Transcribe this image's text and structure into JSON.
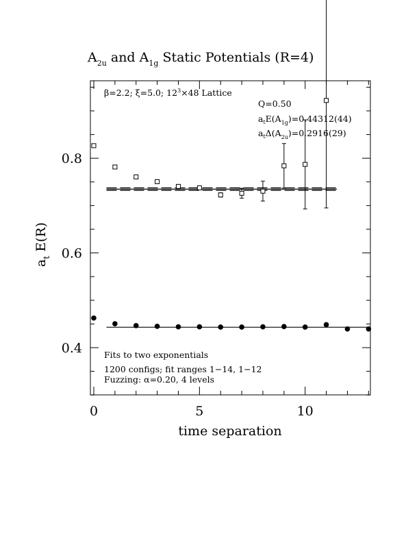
{
  "chart_data": {
    "type": "scatter",
    "title": {
      "a": "A",
      "a_sub": "2u",
      "mid": " and A",
      "b_sub": "1g",
      "end": " Static Potentials (R=4)"
    },
    "xlabel": "time separation",
    "ylabel": {
      "main": "a",
      "sub": "t",
      "rest": " E(R)"
    },
    "xlim": [
      0,
      13
    ],
    "ylim": [
      0.3,
      0.965
    ],
    "x_ticks": [
      0,
      5,
      10
    ],
    "y_ticks": [
      0.4,
      0.6,
      0.8
    ],
    "x_tick_labels": [
      "0",
      "5",
      "10"
    ],
    "y_tick_labels": [
      "0.4",
      "0.6",
      "0.8"
    ],
    "lattice_note": {
      "beta": "β=2.2; ξ=5.0; 12",
      "sup": "3",
      "rest": "×48 Lattice"
    },
    "fit_info": {
      "q": "Q=0.50",
      "e1_pre": "a",
      "e1_sub": "t",
      "e1_mid": "E(A",
      "e1_sub2": "1g",
      "e1_val": ")=0.44312(44)",
      "e2_pre": "a",
      "e2_sub": "t",
      "e2_mid": "Δ(A",
      "e2_sub2": "2u",
      "e2_val": ")=0.2916(29)"
    },
    "footnote": {
      "line1": "Fits to two exponentials",
      "line2": "1200 configs; fit ranges 1−14, 1−12",
      "line3": "Fuzzing: α=0.20, 4 levels"
    },
    "series": [
      {
        "marker": "filled-circle",
        "x": [
          0,
          1,
          2,
          3,
          4,
          5,
          6,
          7,
          8,
          9,
          10,
          11,
          12,
          13
        ],
        "y": [
          0.4625,
          0.4505,
          0.4465,
          0.445,
          0.444,
          0.444,
          0.4435,
          0.4435,
          0.444,
          0.4445,
          0.4435,
          0.4485,
          0.4395,
          0.4395
        ],
        "err": [
          0.0005,
          0.0005,
          0.0005,
          0.0005,
          0.0005,
          0.0005,
          0.0005,
          0.0005,
          0.0005,
          0.0008,
          0.0012,
          0.003,
          0.003,
          0.003
        ]
      },
      {
        "marker": "open-square",
        "x": [
          0,
          1,
          2,
          3,
          4,
          5,
          6,
          7,
          8,
          9,
          10,
          11
        ],
        "y": [
          0.8265,
          0.7815,
          0.7605,
          0.7505,
          0.7405,
          0.7375,
          0.7225,
          0.726,
          0.7305,
          0.784,
          0.787,
          0.922
        ],
        "err": [
          0.0015,
          0.0015,
          0.0015,
          0.0015,
          0.0025,
          0.0035,
          0.0045,
          0.0105,
          0.021,
          0.047,
          0.094,
          0.227
        ]
      }
    ],
    "fit_lines": [
      {
        "style": "solid",
        "x_range": [
          0.6,
          13
        ],
        "y": 0.4431
      },
      {
        "style": "solid",
        "x_range": [
          0.6,
          11.5
        ],
        "y": 0.7347
      },
      {
        "style": "dashed",
        "x_range": [
          0.6,
          11.5
        ],
        "y": 0.732
      },
      {
        "style": "dashed",
        "x_range": [
          0.6,
          11.5
        ],
        "y": 0.7374
      }
    ]
  }
}
